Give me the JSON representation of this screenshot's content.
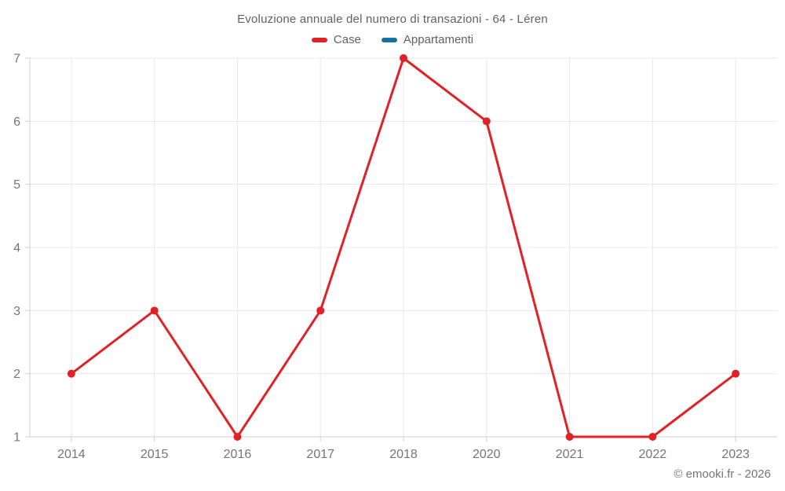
{
  "chart_data": {
    "type": "line",
    "title": "Evoluzione annuale del numero di transazioni - 64 - Léren",
    "categories": [
      "2014",
      "2015",
      "2016",
      "2017",
      "2018",
      "2020",
      "2021",
      "2022",
      "2023"
    ],
    "series": [
      {
        "name": "Case",
        "color": "#e02226",
        "values": [
          2,
          3,
          1,
          3,
          7,
          6,
          1,
          1,
          2
        ]
      },
      {
        "name": "Appartamenti",
        "color": "#17709e",
        "values": []
      }
    ],
    "xlabel": "",
    "ylabel": "",
    "ylim": [
      1,
      7
    ],
    "yticks": [
      1,
      2,
      3,
      4,
      5,
      6,
      7
    ],
    "grid": true,
    "legend_position": "top"
  },
  "footer": {
    "watermark": "© emooki.fr - 2026"
  }
}
